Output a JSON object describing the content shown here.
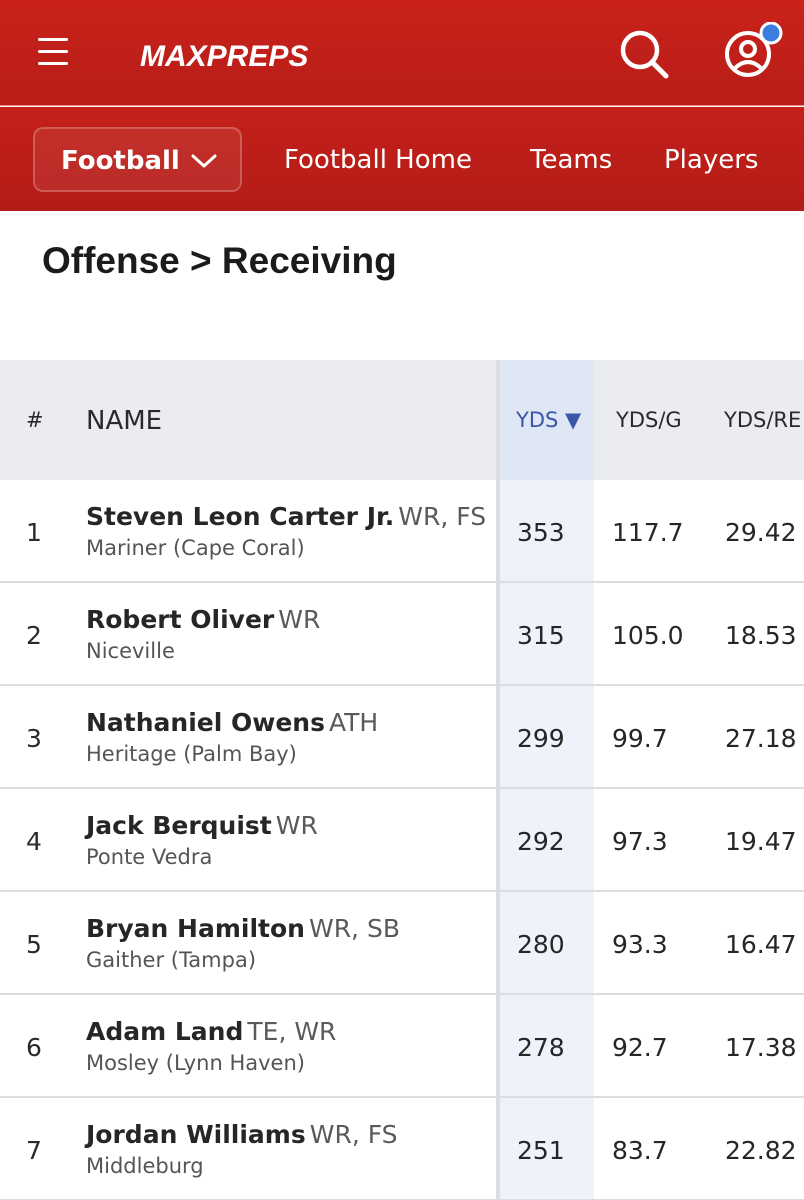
{
  "brand": {
    "logo_text": "MAXPREPS",
    "accent": "#c9221b",
    "notification_dot": "#3c7de0"
  },
  "header": {
    "menu_icon": "hamburger-icon",
    "search_icon": "search-icon",
    "account_icon": "account-icon"
  },
  "subnav": {
    "sport_selected": "Football",
    "links": [
      "Football Home",
      "Teams",
      "Players"
    ]
  },
  "page": {
    "title": "Offense > Receiving"
  },
  "table": {
    "columns": [
      "#",
      "NAME",
      "YDS ▼",
      "YDS/G",
      "YDS/RE"
    ],
    "sorted_column": "YDS",
    "rows": [
      {
        "rank": "1",
        "name": "Steven Leon Carter Jr.",
        "pos": "WR, FS",
        "school": "Mariner (Cape Coral)",
        "yds": "353",
        "ydsg": "117.7",
        "ydsr": "29.42"
      },
      {
        "rank": "2",
        "name": "Robert Oliver",
        "pos": "WR",
        "school": "Niceville",
        "yds": "315",
        "ydsg": "105.0",
        "ydsr": "18.53"
      },
      {
        "rank": "3",
        "name": "Nathaniel Owens",
        "pos": "ATH",
        "school": "Heritage (Palm Bay)",
        "yds": "299",
        "ydsg": "99.7",
        "ydsr": "27.18"
      },
      {
        "rank": "4",
        "name": "Jack Berquist",
        "pos": "WR",
        "school": "Ponte Vedra",
        "yds": "292",
        "ydsg": "97.3",
        "ydsr": "19.47"
      },
      {
        "rank": "5",
        "name": "Bryan Hamilton",
        "pos": "WR, SB",
        "school": "Gaither (Tampa)",
        "yds": "280",
        "ydsg": "93.3",
        "ydsr": "16.47"
      },
      {
        "rank": "6",
        "name": "Adam Land",
        "pos": "TE, WR",
        "school": "Mosley (Lynn Haven)",
        "yds": "278",
        "ydsg": "92.7",
        "ydsr": "17.38"
      },
      {
        "rank": "7",
        "name": "Jordan Williams",
        "pos": "WR, FS",
        "school": "Middleburg",
        "yds": "251",
        "ydsg": "83.7",
        "ydsr": "22.82"
      }
    ]
  }
}
